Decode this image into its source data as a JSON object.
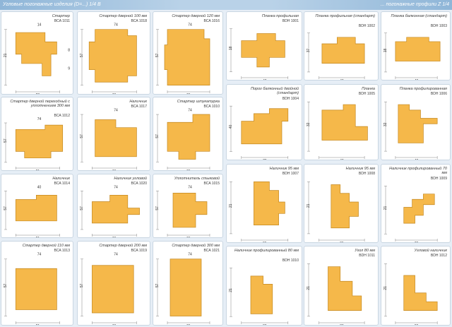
{
  "header": {
    "left": "Угловые погонажные изделия (D=...) 1/4 B",
    "right": "... погонажные профили Z 1/4"
  },
  "cards": [
    {
      "title": "Стартер",
      "code": "BCA 1011",
      "dims": [
        "28",
        "21",
        "14",
        "8",
        "9"
      ]
    },
    {
      "title": "Стартер дверной 100 мм",
      "code": "BCA 1018",
      "dims": [
        "21",
        "57",
        "74"
      ]
    },
    {
      "title": "Стартер дверной 120 мм",
      "code": "BCA 1016",
      "dims": [
        "21",
        "57",
        "74"
      ]
    },
    {
      "title": "Планка профильная",
      "code": "BDH 1001",
      "dims": [
        "40",
        "18"
      ]
    },
    {
      "title": "Планка профильная (стандарт)",
      "code": "BDH 1002",
      "dims": [
        "40",
        "37"
      ]
    },
    {
      "title": "Планка балконная (стандарт)",
      "code": "BDH 1003",
      "dims": [
        "40",
        "18"
      ]
    },
    {
      "title": "Стартер дверной переходный с уплотнением 300 мм",
      "code": "BCA 1012",
      "dims": [
        "21",
        "57",
        "74"
      ]
    },
    {
      "title": "Наличник",
      "code": "BCA 1017",
      "dims": [
        "21",
        "57",
        "74"
      ]
    },
    {
      "title": "Стартер штукатурка",
      "code": "BCA 1010",
      "dims": [
        "21",
        "57",
        "74"
      ]
    },
    {
      "title": "Порог балконный двойной (стандарт)",
      "code": "BDH 1004",
      "dims": [
        "70",
        "40"
      ]
    },
    {
      "title": "Планка",
      "code": "BDH 1005",
      "dims": [
        "40",
        "32"
      ]
    },
    {
      "title": "Планка профилированная",
      "code": "BDH 1006",
      "dims": [
        "40",
        "32"
      ]
    },
    {
      "title": "Наличник",
      "code": "BCA 1014",
      "dims": [
        "21",
        "57",
        "40"
      ]
    },
    {
      "title": "Наличник угловой",
      "code": "BCA 1020",
      "dims": [
        "21",
        "57",
        "74"
      ]
    },
    {
      "title": "Уплотнитель стыковой",
      "code": "BCA 1015",
      "dims": [
        "21",
        "57",
        "74"
      ]
    },
    {
      "title": "Наличник 95 мм",
      "code": "BDH 1007",
      "dims": [
        "95",
        "21"
      ]
    },
    {
      "title": "Наличник 95 мм",
      "code": "BDH 1008",
      "dims": [
        "95",
        "21"
      ]
    },
    {
      "title": "Наличник профилированный 70 мм",
      "code": "BDH 1009",
      "dims": [
        "70",
        "21"
      ]
    },
    {
      "title": "Стартер дверной 110 мм",
      "code": "BCA 1013",
      "dims": [
        "21",
        "57",
        "74"
      ]
    },
    {
      "title": "Стартер дверной 200 мм",
      "code": "BCA 1019",
      "dims": [
        "21",
        "57",
        "74"
      ]
    },
    {
      "title": "Стартер дверной 300 мм",
      "code": "BCA 1021",
      "dims": [
        "21",
        "57",
        "74"
      ]
    },
    {
      "title": "Наличник профилированный 80 мм",
      "code": "BDH 1010",
      "dims": [
        "80",
        "21"
      ]
    },
    {
      "title": "Угол 80 мм",
      "code": "BDH 1011",
      "dims": [
        "80",
        "21"
      ]
    },
    {
      "title": "Угловой наличник",
      "code": "BDH 1012",
      "dims": [
        "80",
        "21"
      ]
    }
  ]
}
